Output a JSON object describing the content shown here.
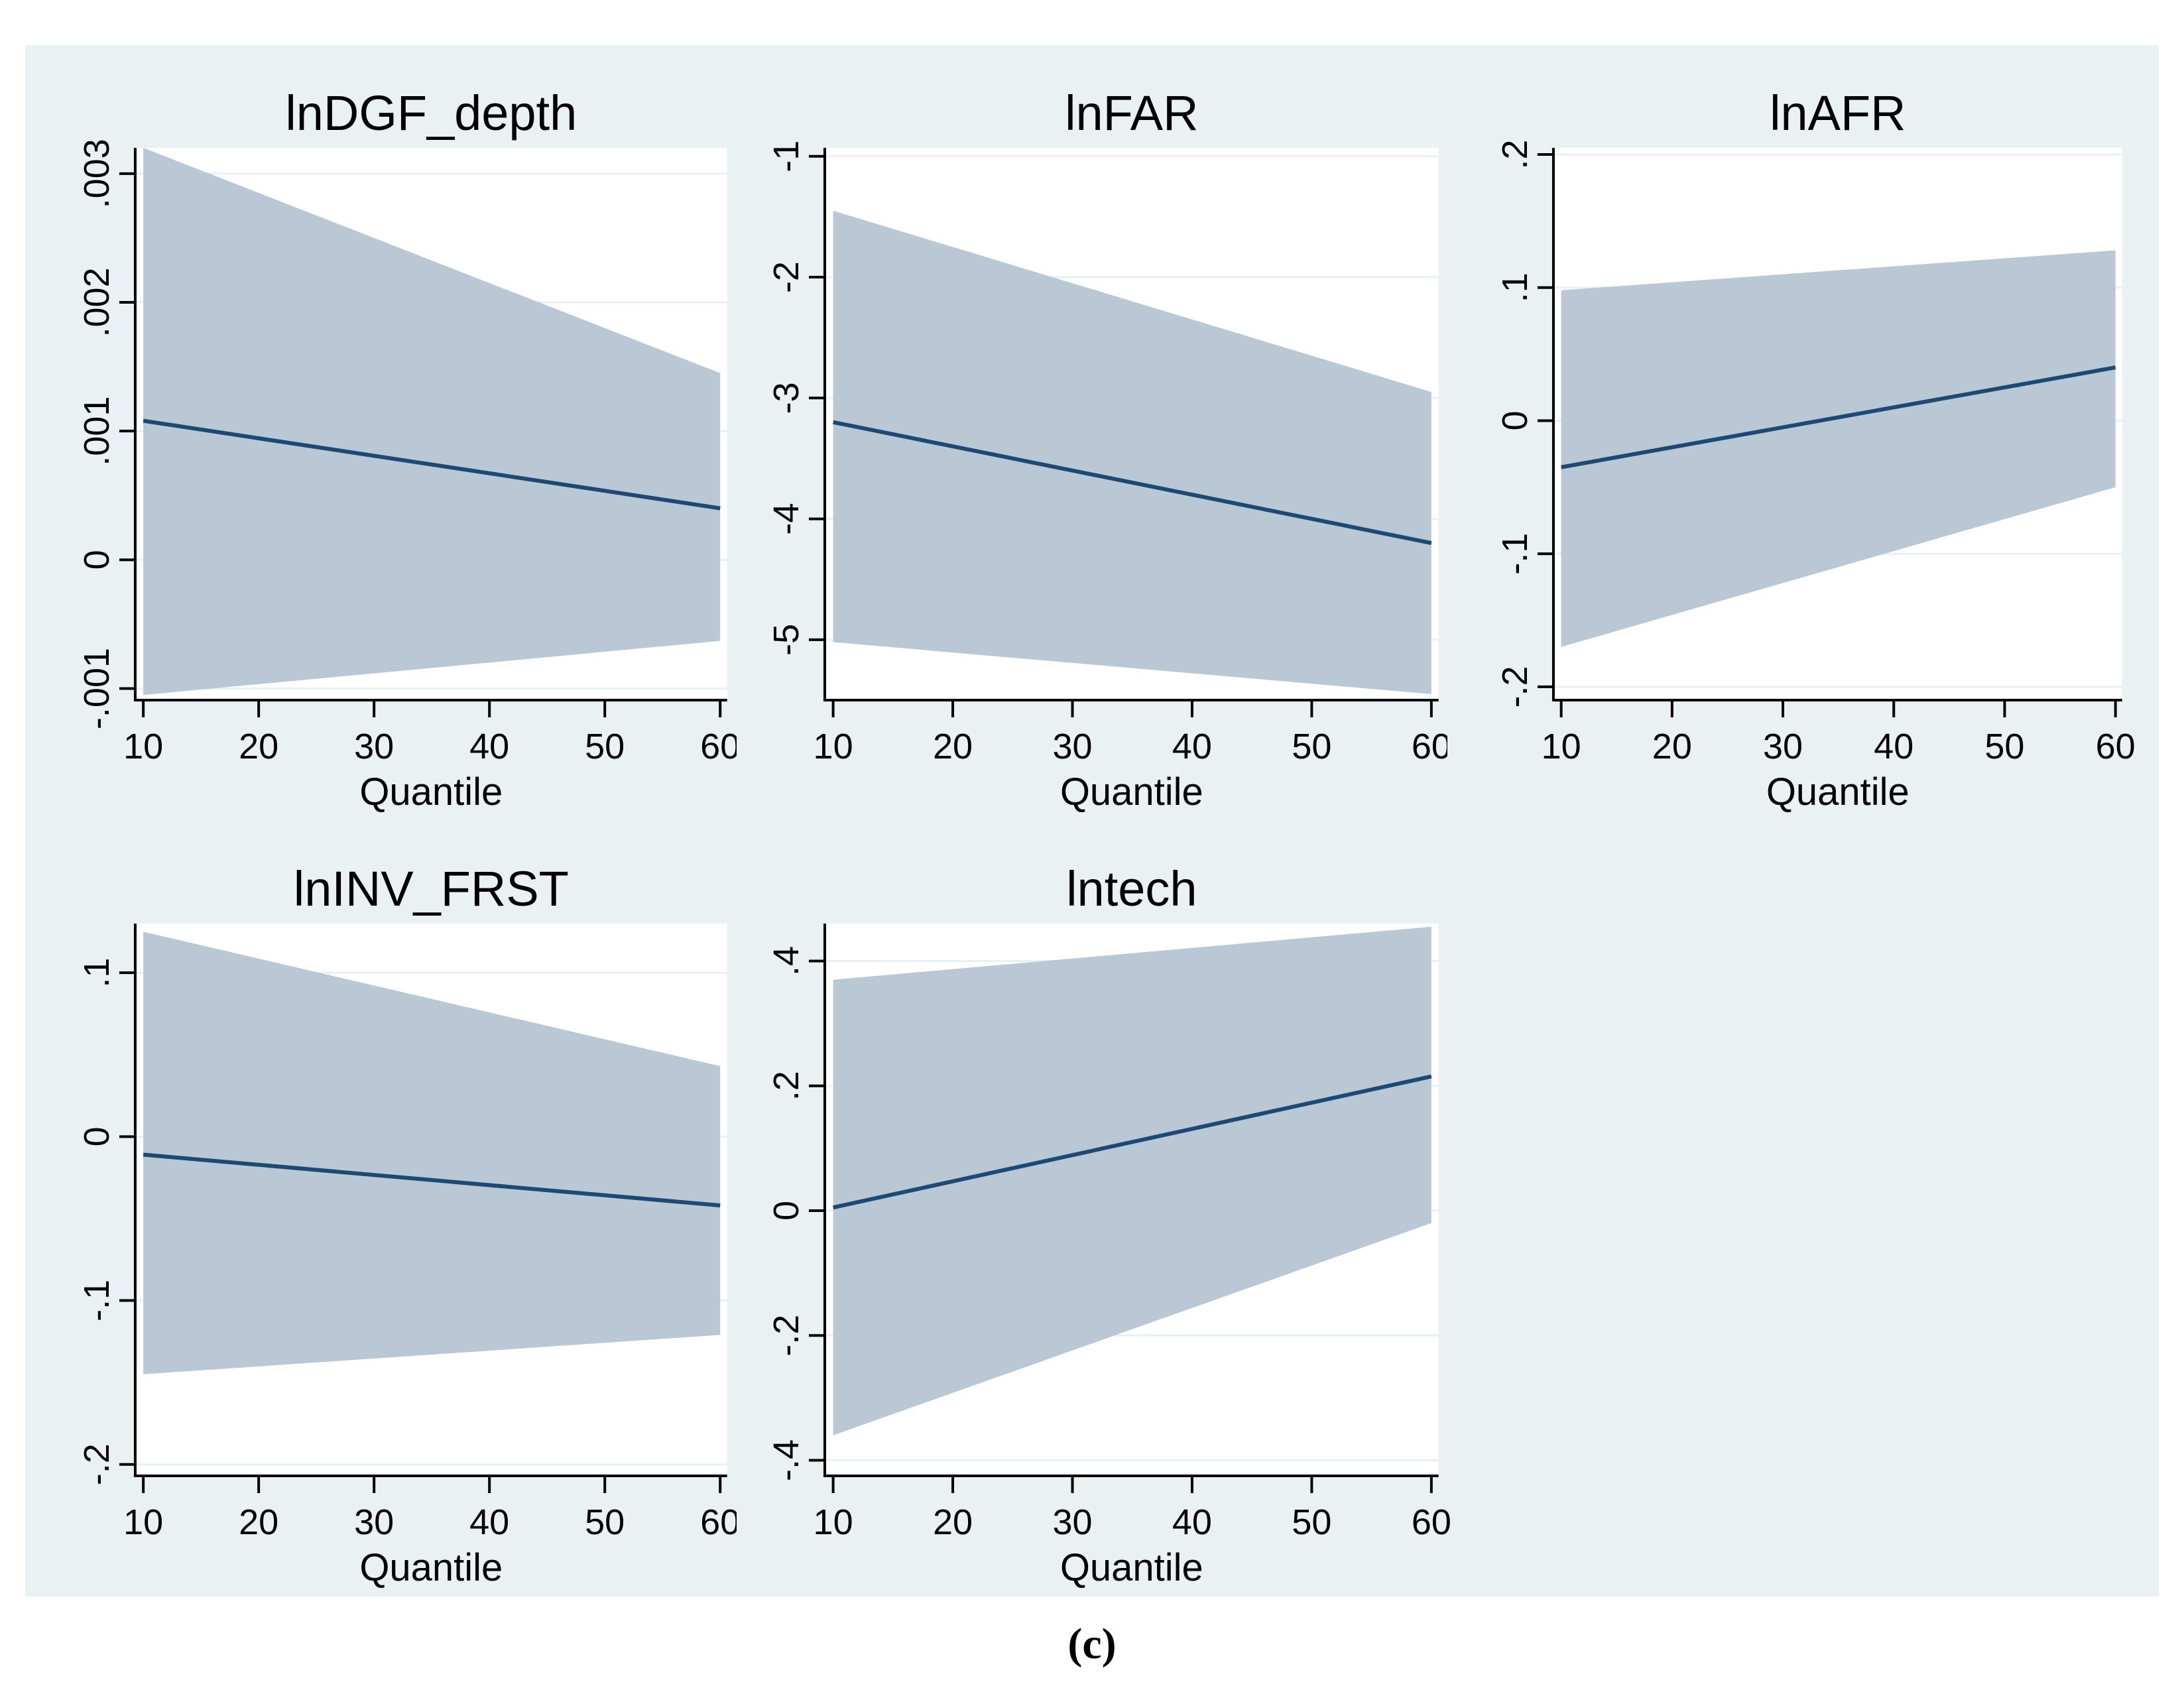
{
  "figure": {
    "caption": "(c)"
  },
  "colors": {
    "page_bg": "#ffffff",
    "panel_bg": "#eaf1f3",
    "plot_bg": "#ffffff",
    "ci_band": "#b9c8d4",
    "fit_line": "#1d4a74",
    "title_text": "#253a5e",
    "gridline": "#e7f1f4",
    "axis": "#000000"
  },
  "chart_data": [
    {
      "type": "area",
      "title": "lnDGF_depth",
      "xlabel": "Quantile",
      "x": [
        10,
        60
      ],
      "series": [
        {
          "name": "coefficient",
          "values": [
            0.00108,
            0.0004
          ]
        },
        {
          "name": "ci_upper",
          "values": [
            0.0032,
            0.00145
          ]
        },
        {
          "name": "ci_lower",
          "values": [
            -0.00105,
            -0.00063
          ]
        }
      ],
      "xlim": [
        9.3,
        60.6
      ],
      "ylim": [
        -0.00109,
        0.0032
      ],
      "xticks": [
        10,
        20,
        30,
        40,
        50,
        60
      ],
      "yticks": [
        -0.001,
        0,
        0.001,
        0.002,
        0.003
      ],
      "ytick_labels": [
        "-.001",
        "0",
        ".001",
        ".002",
        ".003"
      ],
      "grid": true,
      "legend": "none"
    },
    {
      "type": "area",
      "title": "lnFAR",
      "xlabel": "Quantile",
      "x": [
        10,
        60
      ],
      "series": [
        {
          "name": "coefficient",
          "values": [
            -3.2,
            -4.2
          ]
        },
        {
          "name": "ci_upper",
          "values": [
            -1.45,
            -2.95
          ]
        },
        {
          "name": "ci_lower",
          "values": [
            -5.02,
            -5.45
          ]
        }
      ],
      "xlim": [
        9.3,
        60.6
      ],
      "ylim": [
        -5.5,
        -0.93
      ],
      "xticks": [
        10,
        20,
        30,
        40,
        50,
        60
      ],
      "yticks": [
        -5,
        -4,
        -3,
        -2,
        -1
      ],
      "ytick_labels": [
        "-5",
        "-4",
        "-3",
        "-2",
        "-1"
      ],
      "grid": true,
      "legend": "none"
    },
    {
      "type": "area",
      "title": "lnAFR",
      "xlabel": "Quantile",
      "x": [
        10,
        60
      ],
      "series": [
        {
          "name": "coefficient",
          "values": [
            -0.035,
            0.04
          ]
        },
        {
          "name": "ci_upper",
          "values": [
            0.098,
            0.128
          ]
        },
        {
          "name": "ci_lower",
          "values": [
            -0.17,
            -0.05
          ]
        }
      ],
      "xlim": [
        9.3,
        60.6
      ],
      "ylim": [
        -0.21,
        0.205
      ],
      "xticks": [
        10,
        20,
        30,
        40,
        50,
        60
      ],
      "yticks": [
        -0.2,
        -0.1,
        0,
        0.1,
        0.2
      ],
      "ytick_labels": [
        "-.2",
        "-.1",
        "0",
        ".1",
        ".2"
      ],
      "grid": true,
      "legend": "none"
    },
    {
      "type": "area",
      "title": "lnINV_FRST",
      "xlabel": "Quantile",
      "x": [
        10,
        60
      ],
      "series": [
        {
          "name": "coefficient",
          "values": [
            -0.011,
            -0.042
          ]
        },
        {
          "name": "ci_upper",
          "values": [
            0.125,
            0.043
          ]
        },
        {
          "name": "ci_lower",
          "values": [
            -0.145,
            -0.121
          ]
        }
      ],
      "xlim": [
        9.3,
        60.6
      ],
      "ylim": [
        -0.207,
        0.13
      ],
      "xticks": [
        10,
        20,
        30,
        40,
        50,
        60
      ],
      "yticks": [
        -0.2,
        -0.1,
        0,
        0.1
      ],
      "ytick_labels": [
        "-.2",
        "-.1",
        "0",
        ".1"
      ],
      "grid": true,
      "legend": "none"
    },
    {
      "type": "area",
      "title": "lntech",
      "xlabel": "Quantile",
      "x": [
        10,
        60
      ],
      "series": [
        {
          "name": "coefficient",
          "values": [
            0.005,
            0.215
          ]
        },
        {
          "name": "ci_upper",
          "values": [
            0.37,
            0.455
          ]
        },
        {
          "name": "ci_lower",
          "values": [
            -0.36,
            -0.02
          ]
        }
      ],
      "xlim": [
        9.3,
        60.6
      ],
      "ylim": [
        -0.425,
        0.46
      ],
      "xticks": [
        10,
        20,
        30,
        40,
        50,
        60
      ],
      "yticks": [
        -0.4,
        -0.2,
        0,
        0.2,
        0.4
      ],
      "ytick_labels": [
        "-.4",
        "-.2",
        "0",
        ".2",
        ".4"
      ],
      "grid": true,
      "legend": "none"
    }
  ]
}
